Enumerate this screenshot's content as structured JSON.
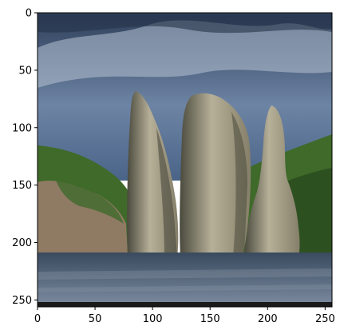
{
  "figure": {
    "x_ticks": [
      {
        "value": 0,
        "label": "0"
      },
      {
        "value": 50,
        "label": "50"
      },
      {
        "value": 100,
        "label": "100"
      },
      {
        "value": 150,
        "label": "150"
      },
      {
        "value": 200,
        "label": "200"
      },
      {
        "value": 250,
        "label": "250"
      }
    ],
    "y_ticks": [
      {
        "value": 0,
        "label": "0"
      },
      {
        "value": 50,
        "label": "50"
      },
      {
        "value": 100,
        "label": "100"
      },
      {
        "value": 150,
        "label": "150"
      },
      {
        "value": 200,
        "label": "200"
      },
      {
        "value": 250,
        "label": "250"
      }
    ],
    "x_range": [
      0,
      256
    ],
    "y_range": [
      0,
      256
    ],
    "y_inverted": true
  },
  "photo": {
    "subject": "three tall sea-stack rock pillars rising from water beside green hills under a cloudy blue sky",
    "colors": {
      "sky_top": "#2e3f5a",
      "sky_mid": "#6d84a4",
      "sky_bottom": "#4a6488",
      "cloud": "#b7c3d3",
      "hill_green": "#3f6a2a",
      "hill_dark": "#27461d",
      "rock_light": "#b7b099",
      "rock_mid": "#857f69",
      "rock_dark": "#4a4a3d",
      "cliff": "#8f7a63",
      "water": "#3a4a5e",
      "water_light": "#7d8ca0"
    }
  }
}
